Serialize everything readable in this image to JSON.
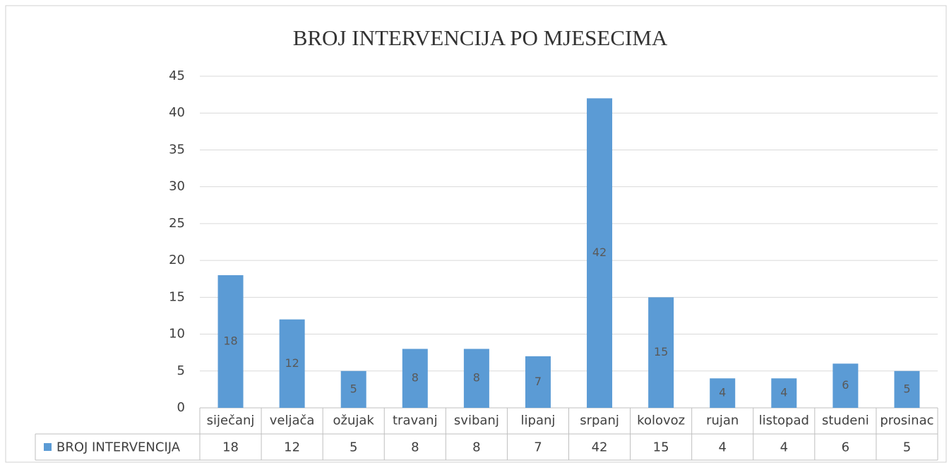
{
  "chart_data": {
    "type": "bar",
    "title": "BROJ INTERVENCIJA PO MJESECIMA",
    "categories": [
      "siječanj",
      "veljača",
      "ožujak",
      "travanj",
      "svibanj",
      "lipanj",
      "srpanj",
      "kolovoz",
      "rujan",
      "listopad",
      "studeni",
      "prosinac"
    ],
    "series": [
      {
        "name": "BROJ INTERVENCIJA",
        "color": "#5b9bd5",
        "values": [
          18,
          12,
          5,
          8,
          8,
          7,
          42,
          15,
          4,
          4,
          6,
          5
        ]
      }
    ],
    "ylim": [
      0,
      45
    ],
    "yticks": [
      0,
      5,
      10,
      15,
      20,
      25,
      30,
      35,
      40,
      45
    ],
    "grid": true,
    "data_labels": true,
    "data_table": true
  }
}
